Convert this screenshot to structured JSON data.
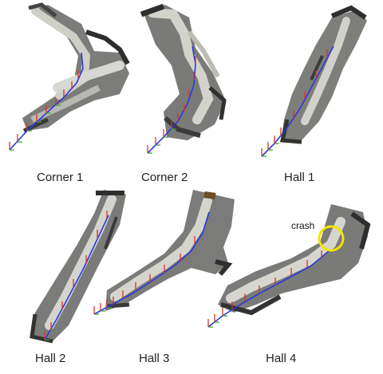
{
  "figure": {
    "panels": [
      {
        "id": "corner1",
        "caption": "Corner 1"
      },
      {
        "id": "corner2",
        "caption": "Corner 2"
      },
      {
        "id": "hall1",
        "caption": "Hall 1"
      },
      {
        "id": "hall2",
        "caption": "Hall 2"
      },
      {
        "id": "hall3",
        "caption": "Hall 3"
      },
      {
        "id": "hall4",
        "caption": "Hall 4"
      }
    ],
    "annotation": {
      "text": "crash",
      "marker_color": "#f2e600"
    },
    "colors": {
      "cloud_dark": "#3a3a3a",
      "cloud_mid": "#8a8a8a",
      "cloud_light": "#d2d2cc",
      "trajectory_blue": "#2a3bd6",
      "axis_red": "#d8332b",
      "axis_green": "#3aa33a",
      "axis_blue": "#2a3bd6"
    }
  }
}
